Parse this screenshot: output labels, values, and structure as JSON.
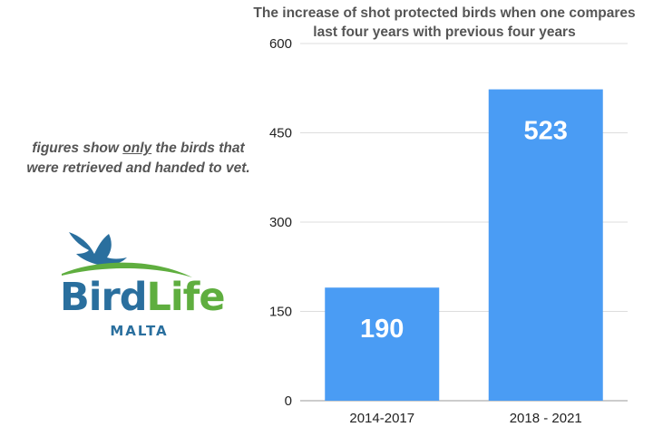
{
  "chart_data": {
    "type": "bar",
    "title_lines": [
      "The increase of shot protected birds when one compares",
      "last four years with previous four years"
    ],
    "categories": [
      "2014-2017",
      "2018 - 2021"
    ],
    "values": [
      190,
      523
    ],
    "data_labels": [
      "190",
      "523"
    ],
    "yticks": [
      0,
      150,
      300,
      450,
      600
    ],
    "ytick_labels": [
      "0",
      "150",
      "300",
      "450",
      "600"
    ],
    "ylim": [
      0,
      600
    ],
    "grid": true,
    "bar_color": "#4a9cf4"
  },
  "note": {
    "line1_before": "figures show ",
    "line1_emph": "only",
    "line1_after": " the birds that",
    "line2": "were retrieved and handed to vet."
  },
  "logo": {
    "word_part1": "Bird",
    "word_part2": "Life",
    "subtitle": "MALTA",
    "blue": "#2a6f9e",
    "green": "#5fae3f"
  }
}
